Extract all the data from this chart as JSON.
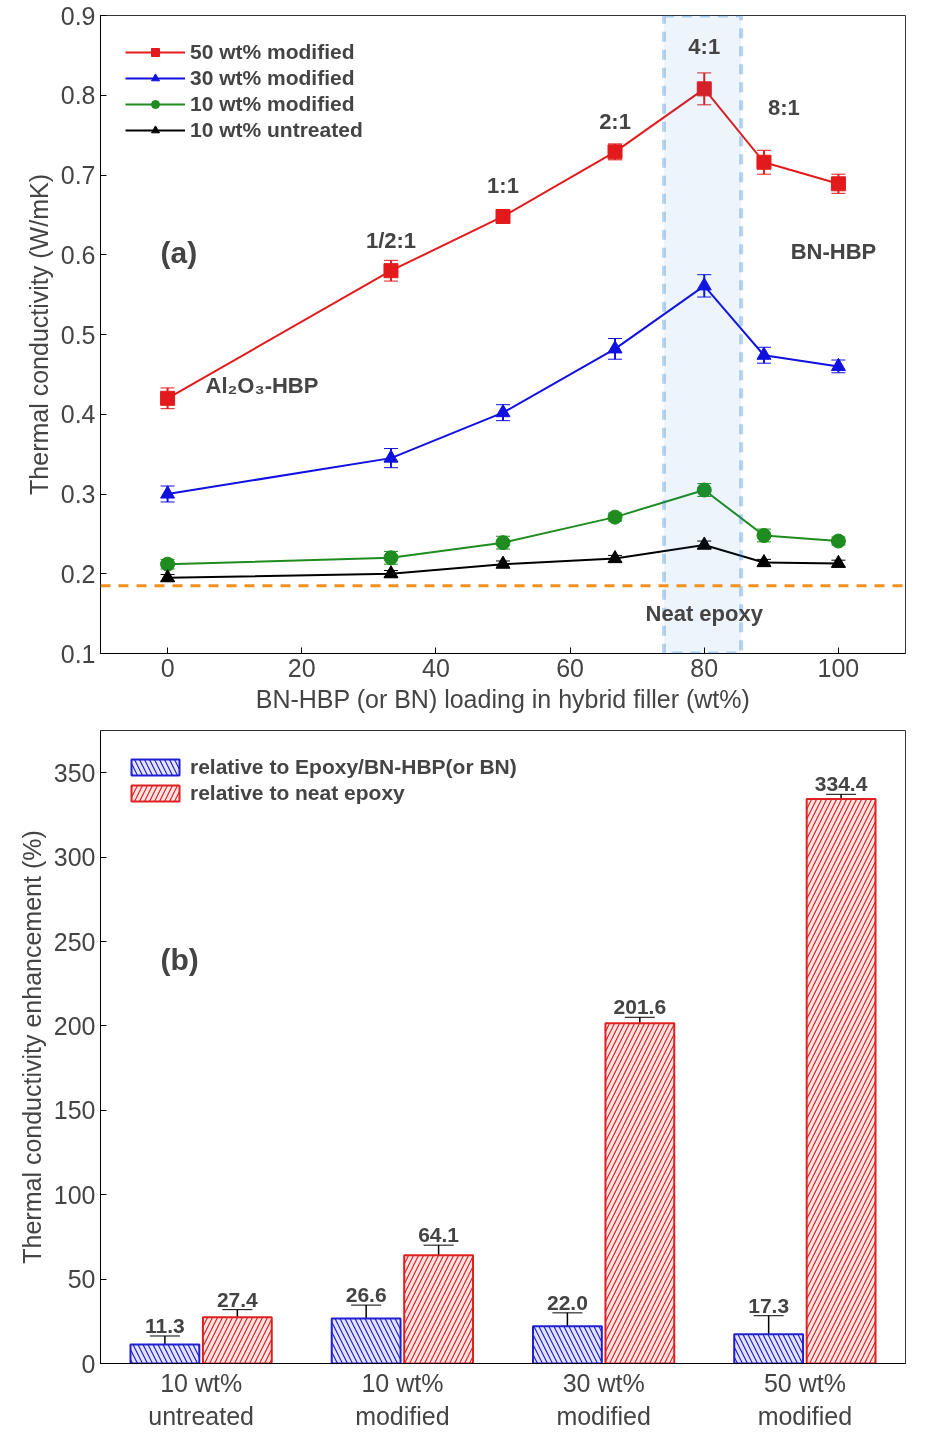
{
  "chart_data": [
    {
      "type": "line",
      "xlabel": "BN-HBP (or BN) loading in hybrid filler (wt%)",
      "ylabel": "Thermal conductivity (W/mK)",
      "x": [
        0,
        33.3,
        50,
        66.7,
        80,
        88.9,
        100
      ],
      "series": [
        {
          "name": "50 wt% modified",
          "color": "#e31a1c",
          "marker": "square",
          "values": [
            0.42,
            0.58,
            0.648,
            0.729,
            0.808,
            0.716,
            0.689
          ],
          "errors": [
            0.013,
            0.013,
            0.008,
            0.01,
            0.02,
            0.015,
            0.012
          ]
        },
        {
          "name": "30 wt% modified",
          "color": "#1010e0",
          "marker": "triangle",
          "values": [
            0.3,
            0.345,
            0.402,
            0.482,
            0.561,
            0.474,
            0.46
          ],
          "errors": [
            0.01,
            0.012,
            0.01,
            0.013,
            0.014,
            0.01,
            0.008
          ]
        },
        {
          "name": "10 wt% modified",
          "color": "#1e8c1e",
          "marker": "circle",
          "values": [
            0.212,
            0.22,
            0.239,
            0.271,
            0.305,
            0.248,
            0.241
          ],
          "errors": [
            0.006,
            0.008,
            0.008,
            0.005,
            0.008,
            0.008,
            0.005
          ]
        },
        {
          "name": "10 wt% untreated",
          "color": "#000000",
          "marker": "triangle",
          "values": [
            0.195,
            0.2,
            0.212,
            0.219,
            0.236,
            0.214,
            0.213
          ],
          "errors": [
            0.004,
            0.004,
            0.004,
            0.004,
            0.005,
            0.004,
            0.004
          ]
        }
      ],
      "xlim": [
        -10,
        110
      ],
      "ylim": [
        0.1,
        0.9
      ],
      "xticks": [
        0,
        20,
        40,
        60,
        80,
        100
      ],
      "yticks": [
        0.1,
        0.2,
        0.3,
        0.4,
        0.5,
        0.6,
        0.7,
        0.8,
        0.9
      ],
      "ref_lines": [
        {
          "axis": "y",
          "value": 0.185,
          "label": "Neat epoxy",
          "color": "#f0901e",
          "line_style": "dashed"
        }
      ],
      "bands": [
        {
          "axis": "x",
          "from": 74,
          "to": 85.5,
          "color": "#1874cd"
        }
      ],
      "annotations": [
        "(a)",
        {
          "text": "1/2:1",
          "x": 33.3,
          "y": 0.58
        },
        {
          "text": "1:1",
          "x": 50,
          "y": 0.648
        },
        {
          "text": "2:1",
          "x": 66.7,
          "y": 0.729
        },
        {
          "text": "4:1",
          "x": 80,
          "y": 0.808
        },
        {
          "text": "8:1",
          "x": 88.9,
          "y": 0.716
        },
        {
          "text": "BN-HBP",
          "x": 100,
          "y": 0.689
        },
        {
          "text": "Al₂O₃-HBP",
          "x": 0,
          "y": 0.42
        }
      ],
      "grid": false,
      "legend": "top left",
      "line_style": "solid"
    },
    {
      "type": "bar",
      "ylabel": "Thermal conductivity enhancement (%)",
      "categories": [
        "10 wt%\nuntreated",
        "10 wt%\nmodified",
        "30 wt%\nmodified",
        "50 wt%\nmodified"
      ],
      "series": [
        {
          "name": "relative to Epoxy/BN-HBP(or BN)",
          "color": "#2020d0",
          "values": [
            11.3,
            26.6,
            22.0,
            17.3
          ],
          "value_labels": [
            "11.3",
            "26.6",
            "22.0",
            "17.3"
          ],
          "errors": [
            5,
            8,
            8,
            11
          ]
        },
        {
          "name": "relative to neat epoxy",
          "color": "#e02020",
          "values": [
            27.4,
            64.1,
            201.6,
            334.4
          ],
          "value_labels": [
            "27.4",
            "64.1",
            "201.6",
            "334.4"
          ],
          "errors": [
            4.5,
            6,
            3.5,
            2.8
          ]
        }
      ],
      "ylim": [
        0,
        375
      ],
      "yticks": [
        0,
        50,
        100,
        150,
        200,
        250,
        300,
        350
      ],
      "annotations": [
        "(b)"
      ],
      "grid": false,
      "legend": "top left"
    }
  ]
}
